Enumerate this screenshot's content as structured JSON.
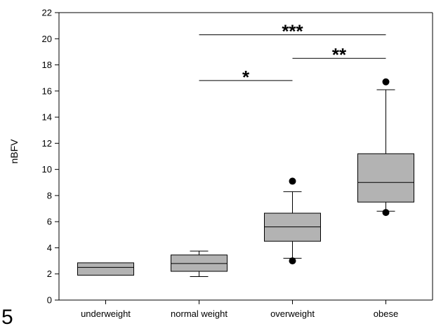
{
  "figure_number": "5",
  "chart_data": {
    "type": "box",
    "title": "",
    "xlabel": "",
    "ylabel": "nBFV",
    "ylim": [
      0,
      22
    ],
    "yticks": [
      0,
      2,
      4,
      6,
      8,
      10,
      12,
      14,
      16,
      18,
      20,
      22
    ],
    "grid": false,
    "colors": {
      "box_fill": "#b3b3b3",
      "stroke": "#000000"
    },
    "categories": [
      "underweight",
      "normal weight",
      "overweight",
      "obese"
    ],
    "boxes": [
      {
        "category": "underweight",
        "q1": 1.9,
        "median": 2.5,
        "q3": 2.85,
        "whisker_low": null,
        "whisker_high": null,
        "outliers": []
      },
      {
        "category": "normal weight",
        "q1": 2.2,
        "median": 2.8,
        "q3": 3.45,
        "whisker_low": 1.8,
        "whisker_high": 3.75,
        "outliers": []
      },
      {
        "category": "overweight",
        "q1": 4.5,
        "median": 5.6,
        "q3": 6.65,
        "whisker_low": 3.2,
        "whisker_high": 8.3,
        "outliers": [
          3.0,
          9.1
        ]
      },
      {
        "category": "obese",
        "q1": 7.5,
        "median": 9.0,
        "q3": 11.2,
        "whisker_low": 6.8,
        "whisker_high": 16.1,
        "outliers": [
          6.7,
          16.7
        ]
      }
    ],
    "significance": [
      {
        "from": "normal weight",
        "to": "overweight",
        "y": 16.8,
        "label": "*"
      },
      {
        "from": "normal weight",
        "to": "obese",
        "y": 20.3,
        "label": "***"
      },
      {
        "from": "overweight",
        "to": "obese",
        "y": 18.5,
        "label": "**"
      }
    ]
  }
}
